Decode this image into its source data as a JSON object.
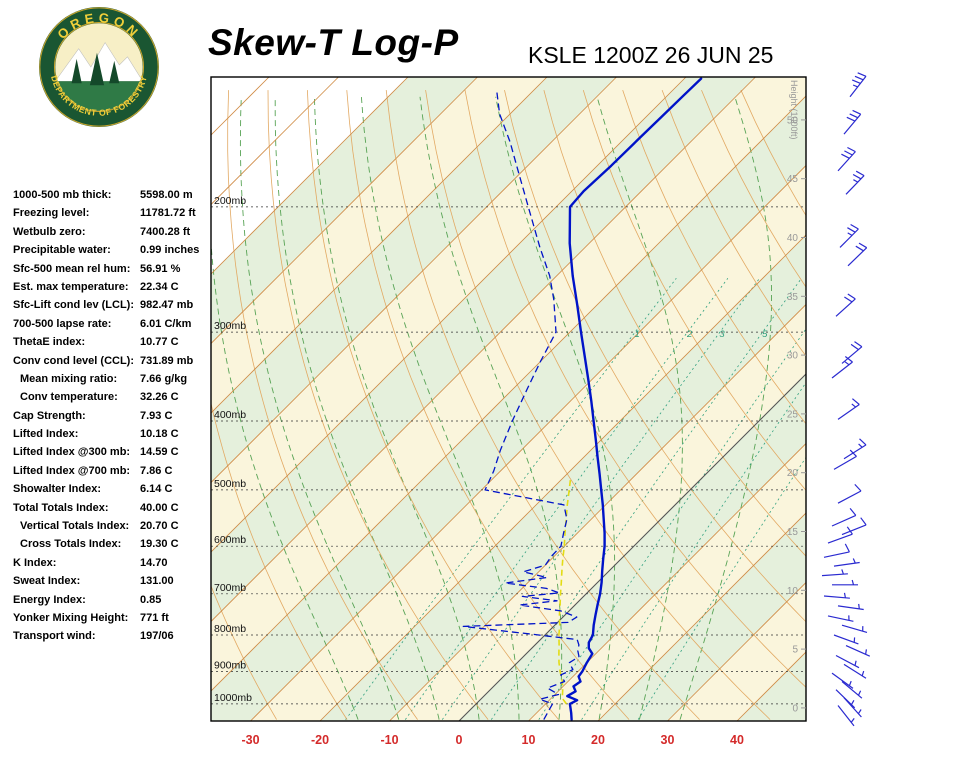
{
  "header": {
    "title": "Skew-T Log-P",
    "station": "KSLE 1200Z 26 JUN 25"
  },
  "logo": {
    "org_top": "OREGON",
    "org_bottom": "DEPARTMENT OF FORESTRY"
  },
  "indices": [
    {
      "label": "1000-500 mb thick:",
      "value": "5598.00 m",
      "indent": false
    },
    {
      "label": "Freezing level:",
      "value": "11781.72 ft",
      "indent": false
    },
    {
      "label": "Wetbulb zero:",
      "value": "7400.28 ft",
      "indent": false
    },
    {
      "label": "Precipitable water:",
      "value": "0.99 inches",
      "indent": false
    },
    {
      "label": "Sfc-500 mean rel hum:",
      "value": "56.91 %",
      "indent": false
    },
    {
      "label": "Est. max temperature:",
      "value": "22.34 C",
      "indent": false
    },
    {
      "label": "Sfc-Lift cond lev (LCL):",
      "value": "982.47 mb",
      "indent": false
    },
    {
      "label": "700-500 lapse rate:",
      "value": "6.01 C/km",
      "indent": false
    },
    {
      "label": "ThetaE index:",
      "value": "10.77 C",
      "indent": false
    },
    {
      "label": "Conv cond level (CCL):",
      "value": "731.89 mb",
      "indent": false
    },
    {
      "label": "Mean mixing ratio:",
      "value": "7.66 g/kg",
      "indent": true
    },
    {
      "label": "Conv temperature:",
      "value": "32.26 C",
      "indent": true
    },
    {
      "label": "Cap Strength:",
      "value": "7.93 C",
      "indent": false
    },
    {
      "label": "Lifted Index:",
      "value": "10.18 C",
      "indent": false
    },
    {
      "label": "Lifted Index @300 mb:",
      "value": "14.59 C",
      "indent": false
    },
    {
      "label": "Lifted Index @700 mb:",
      "value": "7.86 C",
      "indent": false
    },
    {
      "label": "Showalter Index:",
      "value": "6.14 C",
      "indent": false
    },
    {
      "label": "Total Totals Index:",
      "value": "40.00 C",
      "indent": false
    },
    {
      "label": "Vertical Totals Index:",
      "value": "20.70 C",
      "indent": true
    },
    {
      "label": "Cross Totals Index:",
      "value": "19.30 C",
      "indent": true
    },
    {
      "label": "K Index:",
      "value": "14.70",
      "indent": false
    },
    {
      "label": "Sweat Index:",
      "value": "131.00",
      "indent": false
    },
    {
      "label": "Energy Index:",
      "value": "0.85",
      "indent": false
    },
    {
      "label": "Yonker Mixing Height:",
      "value": "771 ft",
      "indent": false
    },
    {
      "label": "Transport wind:",
      "value": "197/06",
      "indent": false
    }
  ],
  "chart_data": {
    "type": "skewt",
    "title": "Skew-T Log-P",
    "station": "KSLE 1200Z 26 JUN 25",
    "pressure_ticks_mb": [
      200,
      300,
      400,
      500,
      600,
      700,
      800,
      900,
      1000
    ],
    "temp_ticks_c": [
      -30,
      -20,
      -10,
      0,
      10,
      20,
      30,
      40
    ],
    "height_ticks_kft": [
      0,
      5,
      10,
      15,
      20,
      25,
      30,
      35,
      40,
      45,
      50
    ],
    "height_axis_label": "Height (1000ft)",
    "mixing_ratio_labels_gkg": [
      1,
      2,
      3,
      5
    ],
    "temperature_profile": [
      [
        1052,
        16
      ],
      [
        1030,
        15
      ],
      [
        1000,
        13.5
      ],
      [
        988,
        14
      ],
      [
        975,
        12
      ],
      [
        960,
        12.5
      ],
      [
        945,
        11.5
      ],
      [
        930,
        11.8
      ],
      [
        915,
        10.8
      ],
      [
        900,
        10.6
      ],
      [
        875,
        10
      ],
      [
        850,
        9.5
      ],
      [
        835,
        8.2
      ],
      [
        820,
        7.4
      ],
      [
        800,
        6.9
      ],
      [
        775,
        5.6
      ],
      [
        750,
        4.4
      ],
      [
        725,
        3.2
      ],
      [
        700,
        2
      ],
      [
        675,
        0.6
      ],
      [
        650,
        -1
      ],
      [
        625,
        -2.6
      ],
      [
        600,
        -4.2
      ],
      [
        575,
        -6.1
      ],
      [
        550,
        -8.2
      ],
      [
        525,
        -10.4
      ],
      [
        500,
        -12.8
      ],
      [
        475,
        -15.3
      ],
      [
        450,
        -18
      ],
      [
        425,
        -20.8
      ],
      [
        400,
        -23.8
      ],
      [
        375,
        -27
      ],
      [
        350,
        -30.5
      ],
      [
        325,
        -34.3
      ],
      [
        300,
        -38.4
      ],
      [
        275,
        -42.8
      ],
      [
        250,
        -47.7
      ],
      [
        225,
        -52.8
      ],
      [
        200,
        -58
      ],
      [
        190,
        -58.3
      ],
      [
        175,
        -58
      ],
      [
        160,
        -57.9
      ],
      [
        150,
        -57.8
      ],
      [
        140,
        -57.7
      ],
      [
        132,
        -57.6
      ]
    ],
    "dewpoint_profile": [
      [
        1052,
        12
      ],
      [
        1000,
        11
      ],
      [
        985,
        8.5
      ],
      [
        970,
        10.5
      ],
      [
        950,
        8
      ],
      [
        930,
        9.5
      ],
      [
        910,
        8
      ],
      [
        895,
        9
      ],
      [
        875,
        7.5
      ],
      [
        858,
        8
      ],
      [
        842,
        7
      ],
      [
        826,
        6.3
      ],
      [
        812,
        5.3
      ],
      [
        798,
        -2
      ],
      [
        778,
        -13
      ],
      [
        768,
        1.5
      ],
      [
        755,
        2
      ],
      [
        740,
        -1.2
      ],
      [
        726,
        -8
      ],
      [
        716,
        -3.2
      ],
      [
        706,
        -8.8
      ],
      [
        698,
        -4
      ],
      [
        688,
        -6.5
      ],
      [
        676,
        -13.2
      ],
      [
        664,
        -8
      ],
      [
        652,
        -12.2
      ],
      [
        638,
        -10
      ],
      [
        620,
        -10.4
      ],
      [
        600,
        -10.5
      ],
      [
        575,
        -12
      ],
      [
        550,
        -13.5
      ],
      [
        525,
        -16
      ],
      [
        510,
        -24
      ],
      [
        500,
        -29.5
      ],
      [
        470,
        -31
      ],
      [
        440,
        -33
      ],
      [
        400,
        -35.5
      ],
      [
        360,
        -38
      ],
      [
        330,
        -40
      ],
      [
        300,
        -42
      ],
      [
        270,
        -47
      ],
      [
        250,
        -51
      ],
      [
        228,
        -56.5
      ],
      [
        200,
        -64
      ],
      [
        180,
        -70
      ],
      [
        162,
        -76
      ],
      [
        148,
        -81.5
      ],
      [
        138,
        -85
      ]
    ],
    "parcel_profile": [
      [
        1000,
        13
      ],
      [
        982,
        11.6
      ],
      [
        950,
        10.2
      ],
      [
        925,
        8.9
      ],
      [
        900,
        7.4
      ],
      [
        875,
        6
      ],
      [
        850,
        4.7
      ],
      [
        825,
        3.4
      ],
      [
        800,
        2
      ],
      [
        775,
        0.7
      ],
      [
        750,
        -0.8
      ],
      [
        725,
        -2.2
      ],
      [
        700,
        -3.7
      ],
      [
        675,
        -5.2
      ],
      [
        650,
        -6.8
      ],
      [
        625,
        -8.4
      ],
      [
        600,
        -10
      ],
      [
        575,
        -11.8
      ],
      [
        550,
        -13.6
      ],
      [
        525,
        -15.5
      ],
      [
        500,
        -17.4
      ],
      [
        480,
        -19
      ]
    ],
    "wind_barbs": [
      {
        "p": 140,
        "angle": 38,
        "spd": 35,
        "o": 14
      },
      {
        "p": 158,
        "angle": 40,
        "spd": 30,
        "o": 8
      },
      {
        "p": 178,
        "angle": 42,
        "spd": 30,
        "o": 2
      },
      {
        "p": 192,
        "angle": 44,
        "spd": 25,
        "o": 10
      },
      {
        "p": 228,
        "angle": 45,
        "spd": 25,
        "o": 4
      },
      {
        "p": 242,
        "angle": 46,
        "spd": 20,
        "o": 12
      },
      {
        "p": 285,
        "angle": 48,
        "spd": 20,
        "o": 0
      },
      {
        "p": 332,
        "angle": 50,
        "spd": 20,
        "o": 6
      },
      {
        "p": 348,
        "angle": 52,
        "spd": 15,
        "o": -4
      },
      {
        "p": 398,
        "angle": 55,
        "spd": 15,
        "o": 2
      },
      {
        "p": 452,
        "angle": 58,
        "spd": 15,
        "o": 8
      },
      {
        "p": 468,
        "angle": 60,
        "spd": 10,
        "o": -2
      },
      {
        "p": 522,
        "angle": 62,
        "spd": 10,
        "o": 2
      },
      {
        "p": 562,
        "angle": 66,
        "spd": 10,
        "o": -4
      },
      {
        "p": 578,
        "angle": 68,
        "spd": 10,
        "o": 6
      },
      {
        "p": 594,
        "angle": 70,
        "spd": 10,
        "o": -8
      },
      {
        "p": 622,
        "angle": 78,
        "spd": 10,
        "o": -12
      },
      {
        "p": 640,
        "angle": 82,
        "spd": 5,
        "o": -2
      },
      {
        "p": 660,
        "angle": 86,
        "spd": 5,
        "o": -14
      },
      {
        "p": 680,
        "angle": 90,
        "spd": 5,
        "o": -4
      },
      {
        "p": 705,
        "angle": 95,
        "spd": 5,
        "o": -12
      },
      {
        "p": 728,
        "angle": 98,
        "spd": 5,
        "o": 2
      },
      {
        "p": 752,
        "angle": 102,
        "spd": 5,
        "o": -8
      },
      {
        "p": 775,
        "angle": 106,
        "spd": 5,
        "o": 6
      },
      {
        "p": 800,
        "angle": 110,
        "spd": 5,
        "o": -2
      },
      {
        "p": 828,
        "angle": 114,
        "spd": 5,
        "o": 10
      },
      {
        "p": 855,
        "angle": 118,
        "spd": 5,
        "o": 0
      },
      {
        "p": 880,
        "angle": 122,
        "spd": 5,
        "o": 8
      },
      {
        "p": 905,
        "angle": 126,
        "spd": 8,
        "o": -4
      },
      {
        "p": 930,
        "angle": 130,
        "spd": 8,
        "o": 6
      },
      {
        "p": 955,
        "angle": 134,
        "spd": 6,
        "o": 0
      },
      {
        "p": 980,
        "angle": 138,
        "spd": 6,
        "o": 8
      },
      {
        "p": 1005,
        "angle": 142,
        "spd": 6,
        "o": 2
      }
    ],
    "colors": {
      "temperature": "#0013c8",
      "dewpoint": "#0013c8",
      "parcel": "#e3dc14",
      "isotherm": "#cf8b45",
      "isotherm_zero": "#555555",
      "adiabat": "#e2a963",
      "moist": "#58a355",
      "mixing": "#2f9f7e",
      "band_cream": "#faf5dc",
      "band_green": "#e5f0dc",
      "pressure_line": "#333333",
      "axis_red": "#d42a2a",
      "height_gray": "#999999",
      "barb": "#2a2ad0",
      "border": "#000000"
    }
  }
}
